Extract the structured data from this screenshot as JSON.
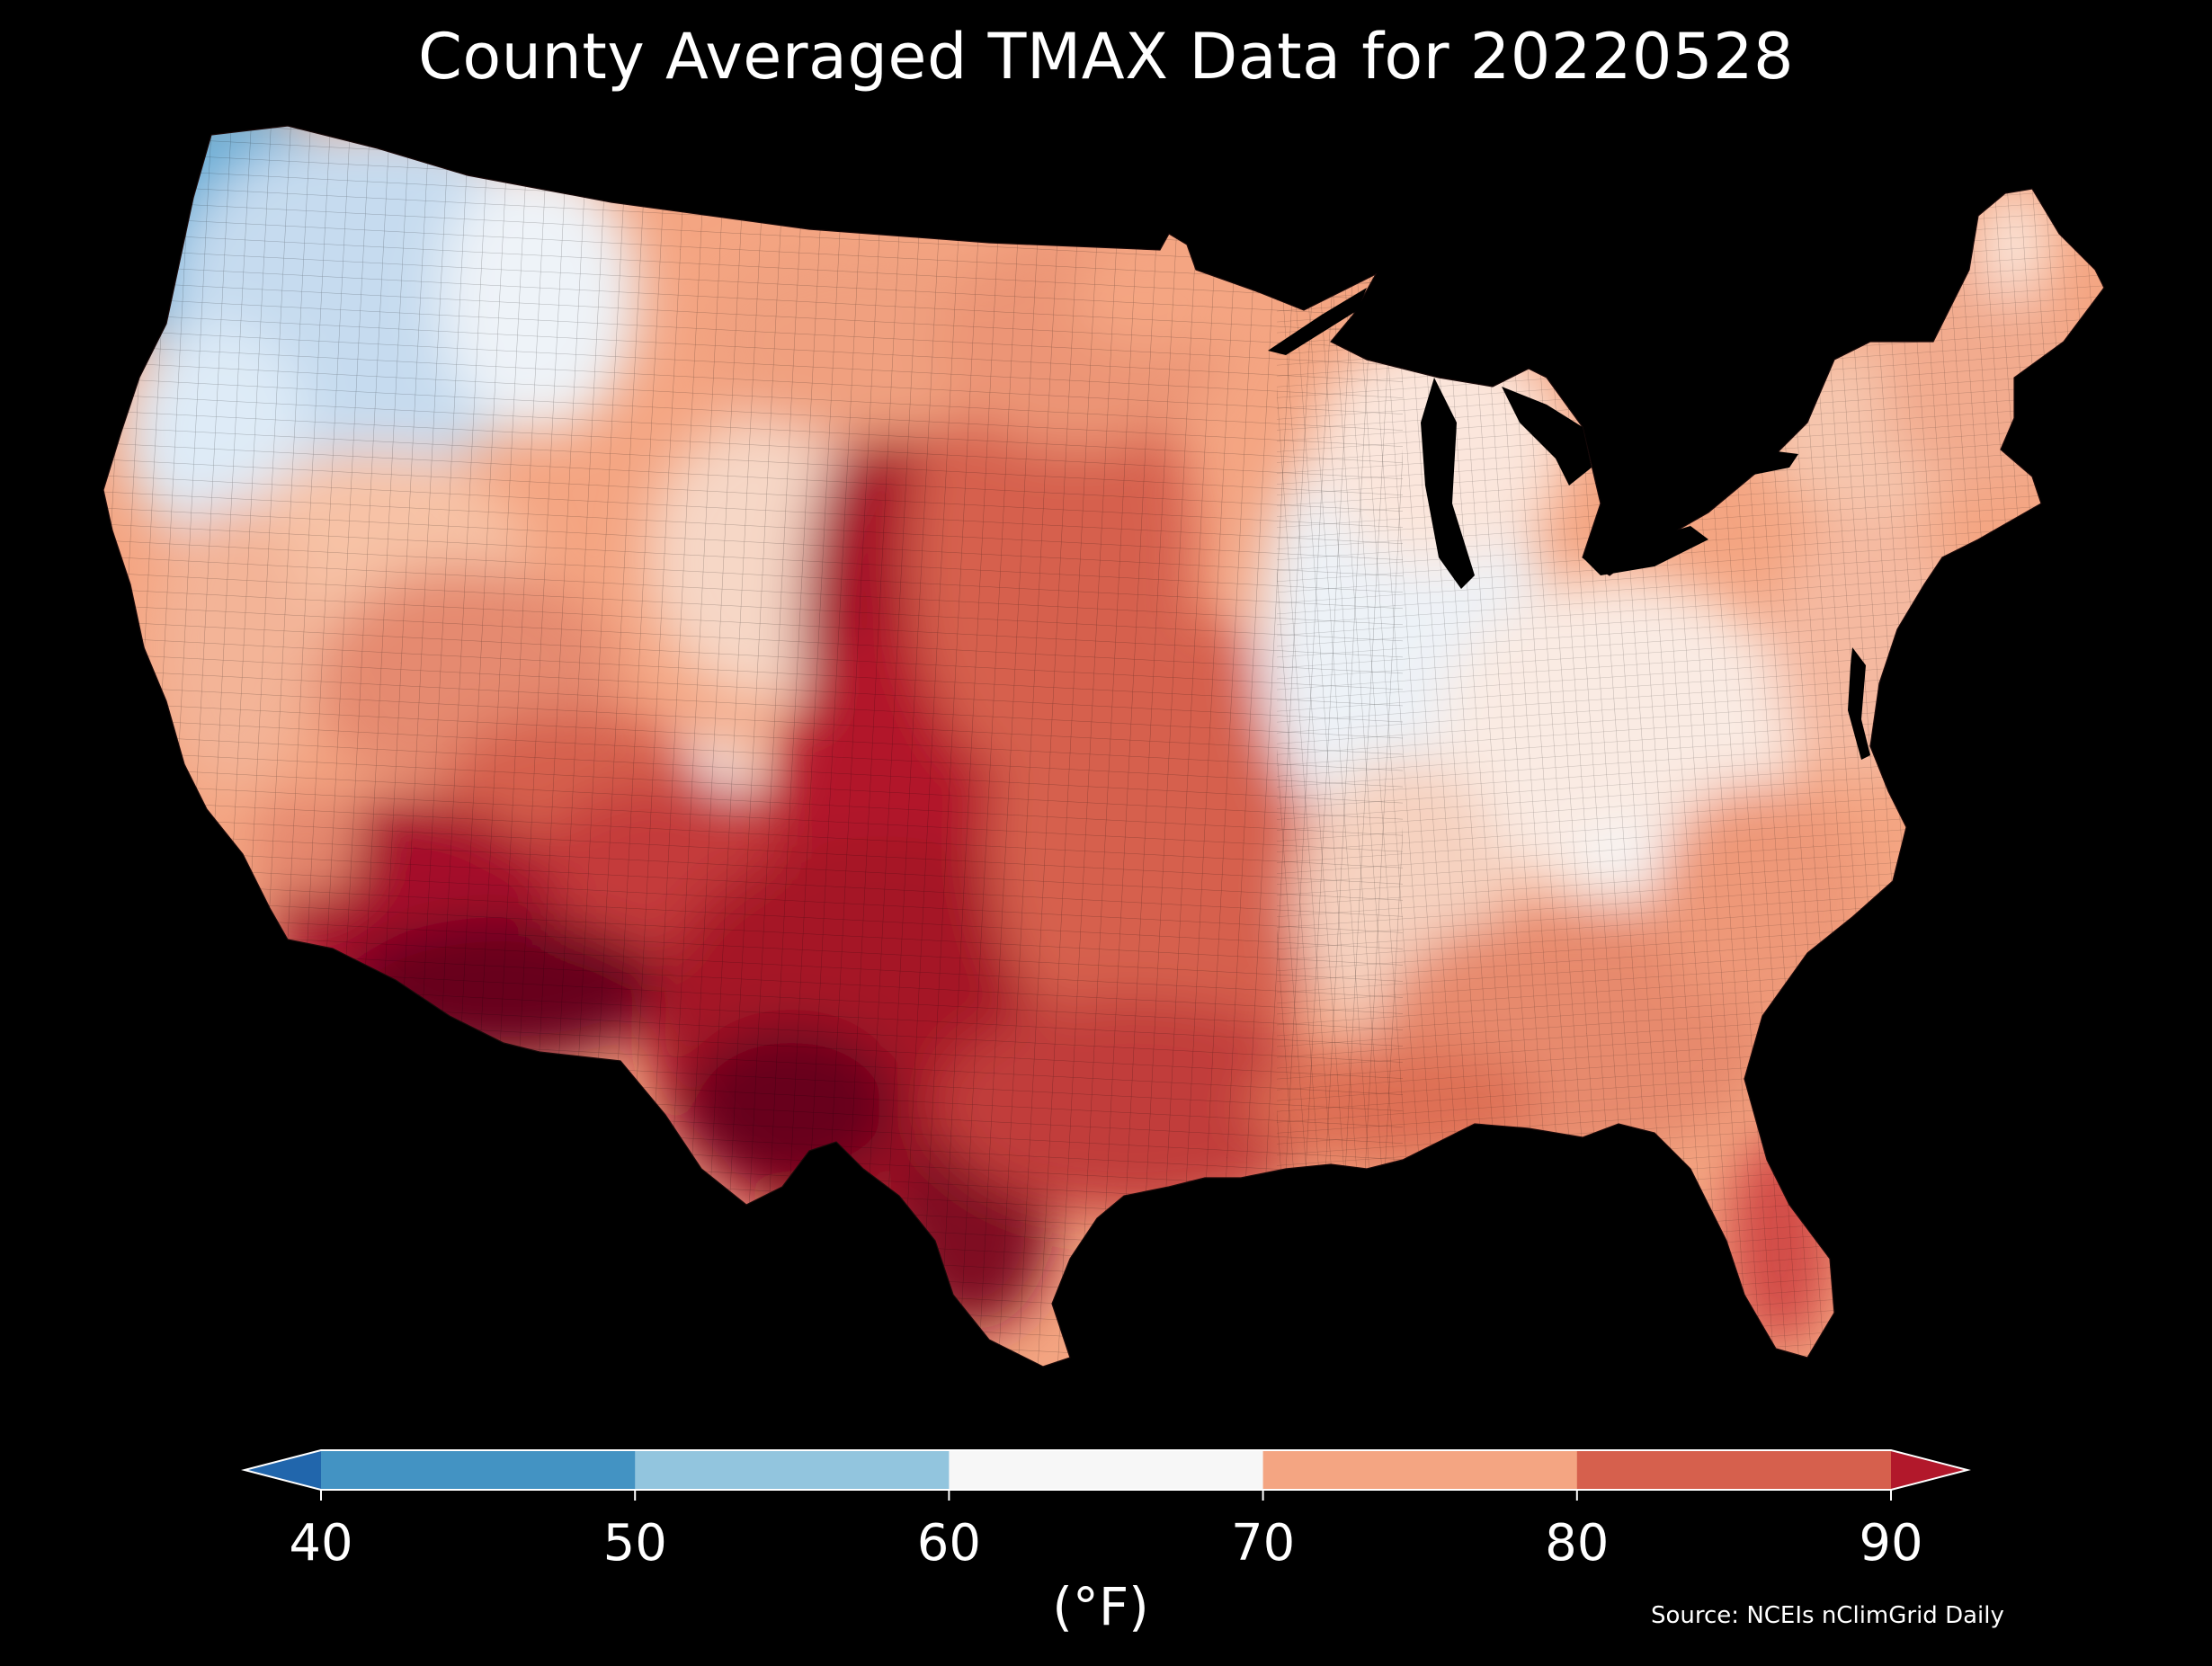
{
  "title": "County Averaged TMAX Data for 20220528",
  "source": "Source: NCEIs nClimGrid Daily",
  "colorbar": {
    "label": "(°F)",
    "ticks": [
      "40",
      "50",
      "60",
      "70",
      "80",
      "90"
    ],
    "bins": [
      {
        "range": "<40",
        "color": "#2166ac"
      },
      {
        "range": "40-50",
        "color": "#4393c3"
      },
      {
        "range": "50-60",
        "color": "#92c5de"
      },
      {
        "range": "60-70",
        "color": "#f7f7f7"
      },
      {
        "range": "70-80",
        "color": "#f4a582"
      },
      {
        "range": "80-90",
        "color": "#d6604d"
      },
      {
        "range": ">90",
        "color": "#b2182b"
      }
    ],
    "extend": "both"
  },
  "map": {
    "region": "Contiguous United States",
    "variable": "TMAX",
    "units": "°F",
    "background": "#000000"
  }
}
